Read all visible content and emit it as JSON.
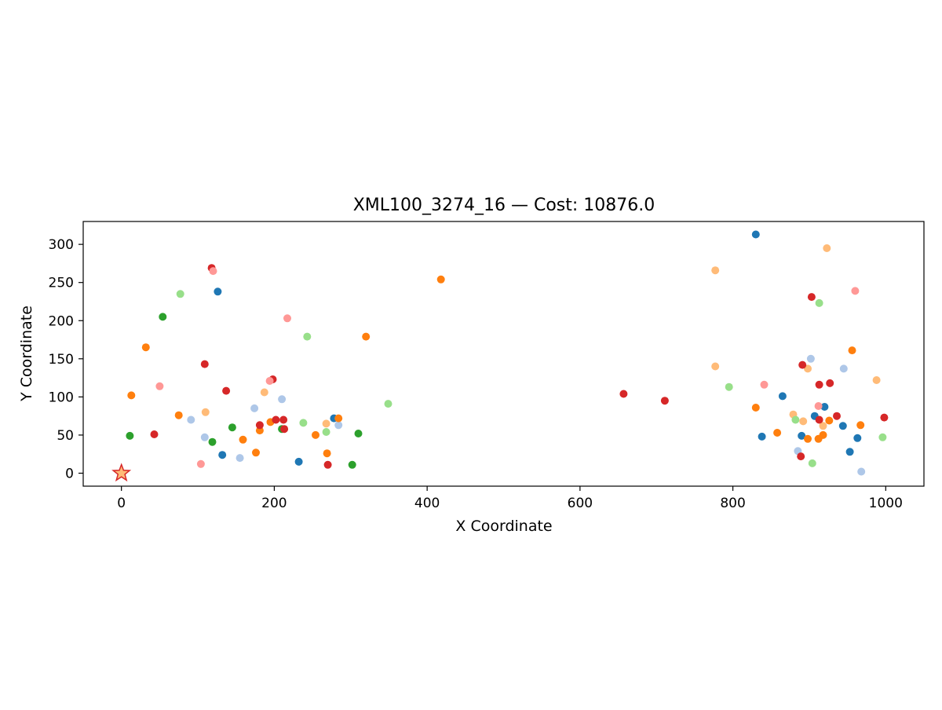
{
  "chart_data": {
    "type": "scatter",
    "title": "XML100_3274_16  —  Cost: 10876.0",
    "xlabel": "X Coordinate",
    "ylabel": "Y Coordinate",
    "xlim": [
      -50,
      1050
    ],
    "ylim": [
      -17,
      330
    ],
    "xticks": [
      0,
      200,
      400,
      600,
      800,
      1000
    ],
    "yticks": [
      0,
      50,
      100,
      150,
      200,
      250,
      300
    ],
    "grid": false,
    "depot": {
      "x": 0,
      "y": 0,
      "marker": "star",
      "color": "#d62728"
    },
    "series": [
      {
        "color": "#1f77b4",
        "points": [
          [
            830,
            313
          ],
          [
            126,
            238
          ],
          [
            865,
            101
          ],
          [
            920,
            87
          ],
          [
            907,
            75
          ],
          [
            278,
            72
          ],
          [
            944,
            62
          ],
          [
            890,
            49
          ],
          [
            838,
            48
          ],
          [
            963,
            46
          ],
          [
            132,
            24
          ],
          [
            953,
            28
          ],
          [
            232,
            15
          ]
        ]
      },
      {
        "color": "#aec7e8",
        "points": [
          [
            902,
            150
          ],
          [
            945,
            137
          ],
          [
            210,
            97
          ],
          [
            174,
            85
          ],
          [
            91,
            70
          ],
          [
            284,
            63
          ],
          [
            109,
            47
          ],
          [
            155,
            20
          ],
          [
            885,
            29
          ],
          [
            968,
            2
          ]
        ]
      },
      {
        "color": "#ff7f0e",
        "points": [
          [
            418,
            254
          ],
          [
            32,
            165
          ],
          [
            320,
            179
          ],
          [
            956,
            161
          ],
          [
            13,
            102
          ],
          [
            75,
            76
          ],
          [
            830,
            86
          ],
          [
            195,
            67
          ],
          [
            284,
            72
          ],
          [
            926,
            69
          ],
          [
            967,
            63
          ],
          [
            181,
            56
          ],
          [
            858,
            53
          ],
          [
            918,
            50
          ],
          [
            254,
            50
          ],
          [
            898,
            45
          ],
          [
            912,
            45
          ],
          [
            159,
            44
          ],
          [
            176,
            27
          ],
          [
            269,
            26
          ]
        ]
      },
      {
        "color": "#ffbb78",
        "points": [
          [
            923,
            295
          ],
          [
            777,
            266
          ],
          [
            777,
            140
          ],
          [
            898,
            137
          ],
          [
            988,
            122
          ],
          [
            187,
            106
          ],
          [
            110,
            80
          ],
          [
            879,
            77
          ],
          [
            892,
            68
          ],
          [
            918,
            62
          ],
          [
            268,
            65
          ]
        ]
      },
      {
        "color": "#2ca02c",
        "points": [
          [
            54,
            205
          ],
          [
            11,
            49
          ],
          [
            145,
            60
          ],
          [
            119,
            41
          ],
          [
            210,
            58
          ],
          [
            310,
            52
          ],
          [
            302,
            11
          ]
        ]
      },
      {
        "color": "#98df8a",
        "points": [
          [
            77,
            235
          ],
          [
            913,
            223
          ],
          [
            243,
            179
          ],
          [
            795,
            113
          ],
          [
            349,
            91
          ],
          [
            238,
            66
          ],
          [
            882,
            70
          ],
          [
            268,
            54
          ],
          [
            996,
            47
          ],
          [
            904,
            13
          ]
        ]
      },
      {
        "color": "#d62728",
        "points": [
          [
            118,
            269
          ],
          [
            903,
            231
          ],
          [
            109,
            143
          ],
          [
            891,
            142
          ],
          [
            913,
            116
          ],
          [
            927,
            118
          ],
          [
            198,
            123
          ],
          [
            137,
            108
          ],
          [
            657,
            104
          ],
          [
            711,
            95
          ],
          [
            998,
            73
          ],
          [
            212,
            70
          ],
          [
            202,
            70
          ],
          [
            936,
            75
          ],
          [
            181,
            63
          ],
          [
            913,
            70
          ],
          [
            213,
            58
          ],
          [
            43,
            51
          ],
          [
            889,
            22
          ],
          [
            270,
            11
          ]
        ]
      },
      {
        "color": "#ff9896",
        "points": [
          [
            120,
            265
          ],
          [
            960,
            239
          ],
          [
            217,
            203
          ],
          [
            50,
            114
          ],
          [
            841,
            116
          ],
          [
            194,
            121
          ],
          [
            912,
            88
          ],
          [
            104,
            12
          ]
        ]
      }
    ]
  }
}
